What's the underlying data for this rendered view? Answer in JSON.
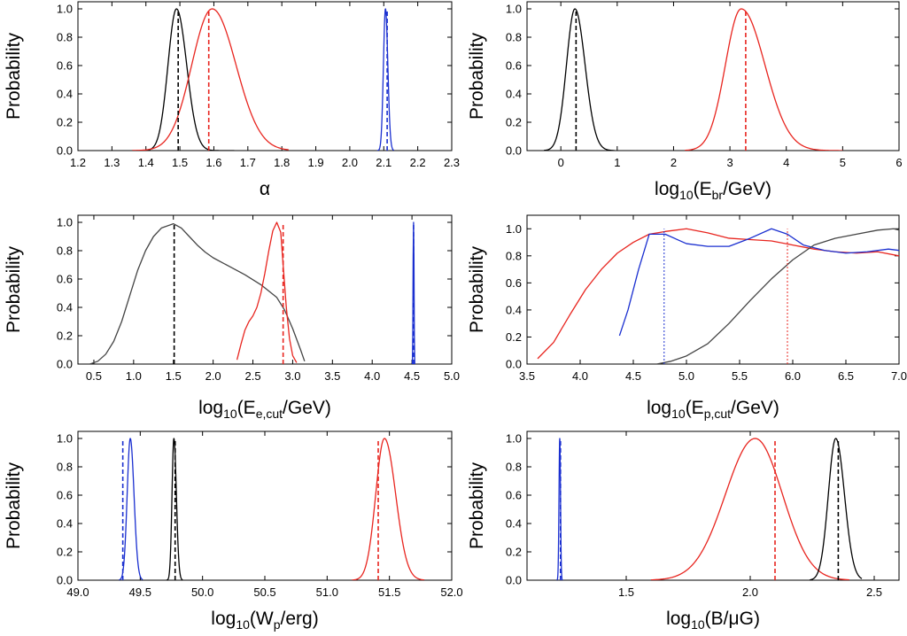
{
  "colors": {
    "black": "#000000",
    "red": "#e8251f",
    "blue": "#1a2fd0",
    "darkgray": "#444444"
  },
  "chart_data": [
    {
      "type": "line",
      "id": "alpha",
      "xlabel": [
        {
          "t": "α",
          "s": "n"
        }
      ],
      "ylabel": "Probability",
      "xlim": [
        1.2,
        2.3
      ],
      "ylim": [
        0,
        1.05
      ],
      "xticks": [
        "1.2",
        "1.3",
        "1.4",
        "1.5",
        "1.6",
        "1.7",
        "1.8",
        "1.9",
        "2.0",
        "2.1",
        "2.2",
        "2.3"
      ],
      "yticks": [
        "0.0",
        "0.2",
        "0.4",
        "0.6",
        "0.8",
        "1.0"
      ],
      "series": [
        {
          "name": "black",
          "color": "black",
          "gauss": {
            "mu": 1.49,
            "sl": 0.025,
            "sr": 0.03,
            "lo": 1.36,
            "hi": 1.66
          }
        },
        {
          "name": "red",
          "color": "red",
          "gauss": {
            "mu": 1.595,
            "sl": 0.06,
            "sr": 0.07,
            "lo": 1.36,
            "hi": 1.82
          }
        },
        {
          "name": "blue",
          "color": "blue",
          "gauss": {
            "mu": 2.105,
            "sl": 0.006,
            "sr": 0.007,
            "lo": 2.08,
            "hi": 2.13
          }
        }
      ],
      "vlines": [
        {
          "x": 1.495,
          "color": "black"
        },
        {
          "x": 1.585,
          "color": "red"
        },
        {
          "x": 2.11,
          "color": "blue"
        }
      ]
    },
    {
      "type": "line",
      "id": "ebr",
      "xlabel": [
        {
          "t": "log",
          "s": "n"
        },
        {
          "t": "10",
          "s": "sub"
        },
        {
          "t": "(E",
          "s": "n"
        },
        {
          "t": "br",
          "s": "sub"
        },
        {
          "t": "/GeV)",
          "s": "n"
        }
      ],
      "ylabel": "Probability",
      "xlim": [
        -0.6,
        6
      ],
      "ylim": [
        0,
        1.05
      ],
      "xticks": [
        "0",
        "1",
        "2",
        "3",
        "4",
        "5",
        "6"
      ],
      "yticks": [
        "0.0",
        "0.2",
        "0.4",
        "0.6",
        "0.8",
        "1.0"
      ],
      "series": [
        {
          "name": "black",
          "color": "black",
          "gauss": {
            "mu": 0.25,
            "sl": 0.15,
            "sr": 0.18,
            "lo": -0.3,
            "hi": 0.95
          }
        },
        {
          "name": "red",
          "color": "red",
          "gauss": {
            "mu": 3.2,
            "sl": 0.28,
            "sr": 0.42,
            "lo": 2.2,
            "hi": 5.0
          }
        }
      ],
      "vlines": [
        {
          "x": 0.27,
          "color": "black"
        },
        {
          "x": 3.28,
          "color": "red"
        }
      ]
    },
    {
      "type": "line",
      "id": "eecut",
      "xlabel": [
        {
          "t": "log",
          "s": "n"
        },
        {
          "t": "10",
          "s": "sub"
        },
        {
          "t": "(E",
          "s": "n"
        },
        {
          "t": "e,cut",
          "s": "sub"
        },
        {
          "t": "/GeV)",
          "s": "n"
        }
      ],
      "ylabel": "Probability",
      "xlim": [
        0.3,
        5.0
      ],
      "ylim": [
        0,
        1.05
      ],
      "xticks": [
        "0.5",
        "1.0",
        "1.5",
        "2.0",
        "2.5",
        "3.0",
        "3.5",
        "4.0",
        "4.5",
        "5.0"
      ],
      "yticks": [
        "0.0",
        "0.2",
        "0.4",
        "0.6",
        "0.8",
        "1.0"
      ],
      "series": [
        {
          "name": "black",
          "color": "darkgray",
          "x": [
            0.45,
            0.55,
            0.65,
            0.75,
            0.85,
            0.95,
            1.05,
            1.15,
            1.25,
            1.35,
            1.5,
            1.6,
            1.7,
            1.8,
            1.9,
            2.0,
            2.2,
            2.4,
            2.6,
            2.8,
            2.9,
            3.0,
            3.1,
            3.15
          ],
          "y": [
            0.0,
            0.02,
            0.07,
            0.16,
            0.3,
            0.48,
            0.66,
            0.8,
            0.9,
            0.96,
            0.99,
            0.96,
            0.9,
            0.84,
            0.79,
            0.75,
            0.69,
            0.63,
            0.56,
            0.47,
            0.38,
            0.25,
            0.1,
            0.02
          ]
        },
        {
          "name": "red",
          "color": "red",
          "x": [
            2.3,
            2.35,
            2.4,
            2.45,
            2.5,
            2.55,
            2.6,
            2.65,
            2.7,
            2.75,
            2.8,
            2.85,
            2.88,
            2.92,
            2.96,
            3.0,
            3.05
          ],
          "y": [
            0.03,
            0.14,
            0.24,
            0.3,
            0.34,
            0.4,
            0.5,
            0.64,
            0.8,
            0.94,
            1.0,
            0.93,
            0.7,
            0.4,
            0.18,
            0.06,
            0.01
          ]
        },
        {
          "name": "blue",
          "color": "blue",
          "x": [
            4.505,
            4.51,
            4.515,
            4.52,
            4.525,
            4.53,
            4.535
          ],
          "y": [
            0.0,
            0.2,
            0.75,
            1.0,
            0.75,
            0.2,
            0.0
          ]
        }
      ],
      "vlines": [
        {
          "x": 1.51,
          "color": "black"
        },
        {
          "x": 2.88,
          "color": "red"
        },
        {
          "x": 4.52,
          "color": "blue"
        }
      ]
    },
    {
      "type": "line",
      "id": "epcut",
      "xlabel": [
        {
          "t": "log",
          "s": "n"
        },
        {
          "t": "10",
          "s": "sub"
        },
        {
          "t": "(E",
          "s": "n"
        },
        {
          "t": "p,cut",
          "s": "sub"
        },
        {
          "t": "/GeV)",
          "s": "n"
        }
      ],
      "ylabel": "Probability",
      "xlim": [
        3.5,
        7.0
      ],
      "ylim": [
        0,
        1.1
      ],
      "xticks": [
        "3.5",
        "4.0",
        "4.5",
        "5.0",
        "5.5",
        "6.0",
        "6.5",
        "7.0"
      ],
      "yticks": [
        "0.0",
        "0.2",
        "0.4",
        "0.6",
        "0.8",
        "1.0"
      ],
      "series": [
        {
          "name": "red",
          "color": "red",
          "x": [
            3.6,
            3.75,
            3.9,
            4.05,
            4.2,
            4.35,
            4.5,
            4.65,
            4.8,
            5.0,
            5.2,
            5.4,
            5.6,
            5.8,
            6.0,
            6.2,
            6.4,
            6.6,
            6.8,
            7.0
          ],
          "y": [
            0.04,
            0.16,
            0.36,
            0.55,
            0.7,
            0.82,
            0.9,
            0.96,
            0.98,
            1.0,
            0.97,
            0.93,
            0.92,
            0.91,
            0.88,
            0.85,
            0.83,
            0.82,
            0.83,
            0.8
          ]
        },
        {
          "name": "blue",
          "color": "blue",
          "x": [
            4.37,
            4.45,
            4.55,
            4.65,
            4.8,
            5.0,
            5.2,
            5.4,
            5.6,
            5.8,
            5.95,
            6.1,
            6.3,
            6.5,
            6.7,
            6.9,
            7.0
          ],
          "y": [
            0.21,
            0.4,
            0.7,
            0.96,
            0.96,
            0.89,
            0.87,
            0.87,
            0.93,
            1.0,
            0.96,
            0.88,
            0.84,
            0.82,
            0.83,
            0.85,
            0.84
          ]
        },
        {
          "name": "gray",
          "color": "darkgray",
          "x": [
            4.72,
            4.85,
            5.0,
            5.2,
            5.4,
            5.6,
            5.8,
            6.0,
            6.2,
            6.4,
            6.6,
            6.8,
            6.95,
            7.0
          ],
          "y": [
            0.0,
            0.02,
            0.06,
            0.15,
            0.3,
            0.47,
            0.63,
            0.77,
            0.88,
            0.93,
            0.96,
            0.99,
            1.0,
            0.99
          ]
        }
      ],
      "vlines": [
        {
          "x": 4.79,
          "color": "blue",
          "style": "dot"
        },
        {
          "x": 5.95,
          "color": "red",
          "style": "dot"
        }
      ]
    },
    {
      "type": "line",
      "id": "wp",
      "xlabel": [
        {
          "t": "log",
          "s": "n"
        },
        {
          "t": "10",
          "s": "sub"
        },
        {
          "t": "(W",
          "s": "n"
        },
        {
          "t": "p",
          "s": "sub"
        },
        {
          "t": "/erg)",
          "s": "n"
        }
      ],
      "ylabel": "Probability",
      "xlim": [
        49.0,
        52.0
      ],
      "ylim": [
        0,
        1.05
      ],
      "xticks": [
        "49.0",
        "49.5",
        "50.0",
        "50.5",
        "51.0",
        "51.5",
        "52.0"
      ],
      "yticks": [
        "0.0",
        "0.2",
        "0.4",
        "0.6",
        "0.8",
        "1.0"
      ],
      "series": [
        {
          "name": "blue",
          "color": "blue",
          "gauss": {
            "mu": 49.42,
            "sl": 0.025,
            "sr": 0.03,
            "lo": 49.33,
            "hi": 49.52
          }
        },
        {
          "name": "black",
          "color": "black",
          "gauss": {
            "mu": 49.77,
            "sl": 0.015,
            "sr": 0.02,
            "lo": 49.71,
            "hi": 49.84
          }
        },
        {
          "name": "red",
          "color": "red",
          "gauss": {
            "mu": 51.46,
            "sl": 0.07,
            "sr": 0.09,
            "lo": 51.2,
            "hi": 51.78
          }
        }
      ],
      "vlines": [
        {
          "x": 49.36,
          "color": "blue"
        },
        {
          "x": 49.78,
          "color": "black"
        },
        {
          "x": 51.41,
          "color": "red"
        }
      ]
    },
    {
      "type": "line",
      "id": "b",
      "xlabel": [
        {
          "t": "log",
          "s": "n"
        },
        {
          "t": "10",
          "s": "sub"
        },
        {
          "t": "(B/μG)",
          "s": "n"
        }
      ],
      "ylabel": "Probability",
      "xlim": [
        1.1,
        2.6
      ],
      "ylim": [
        0,
        1.05
      ],
      "xticks": [
        "1.5",
        "2.0",
        "2.5"
      ],
      "yticks": [
        "0.0",
        "0.2",
        "0.4",
        "0.6",
        "0.8",
        "1.0"
      ],
      "series": [
        {
          "name": "blue",
          "color": "blue",
          "gauss": {
            "mu": 1.232,
            "sl": 0.003,
            "sr": 0.003,
            "lo": 1.22,
            "hi": 1.245
          }
        },
        {
          "name": "red",
          "color": "red",
          "gauss": {
            "mu": 2.02,
            "sl": 0.12,
            "sr": 0.11,
            "lo": 1.6,
            "hi": 2.4
          }
        },
        {
          "name": "black",
          "color": "black",
          "gauss": {
            "mu": 2.345,
            "sl": 0.03,
            "sr": 0.035,
            "lo": 2.24,
            "hi": 2.45
          }
        }
      ],
      "vlines": [
        {
          "x": 1.235,
          "color": "blue"
        },
        {
          "x": 2.1,
          "color": "red"
        },
        {
          "x": 2.355,
          "color": "black"
        }
      ]
    }
  ]
}
